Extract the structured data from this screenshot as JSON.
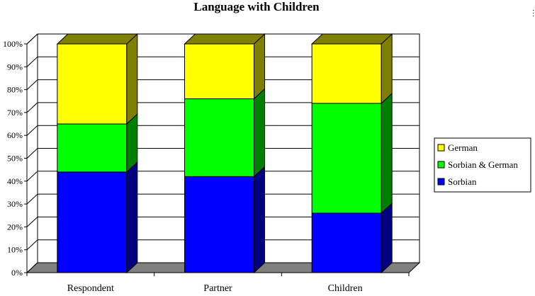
{
  "chart_data": {
    "type": "bar",
    "stacked": true,
    "percent": true,
    "three_d": true,
    "title": "Language with Children",
    "xlabel": "",
    "ylabel": "",
    "ylim": [
      0,
      100
    ],
    "y_ticks": [
      "0%",
      "10%",
      "20%",
      "30%",
      "40%",
      "50%",
      "60%",
      "70%",
      "80%",
      "90%",
      "100%"
    ],
    "categories": [
      "Respondent",
      "Partner",
      "Children"
    ],
    "series": [
      {
        "name": "Sorbian",
        "values": [
          44,
          42,
          26
        ],
        "color": "#0000FF",
        "side_color": "#000080"
      },
      {
        "name": "Sorbian & German",
        "values": [
          21,
          34,
          48
        ],
        "color": "#00FF00",
        "side_color": "#008000"
      },
      {
        "name": "German",
        "values": [
          35,
          24,
          26
        ],
        "color": "#FFFF00",
        "side_color": "#808000"
      }
    ],
    "legend": {
      "placement": "right",
      "order": [
        "German",
        "Sorbian & German",
        "Sorbian"
      ]
    },
    "grid": true,
    "floor_color": "#808080"
  }
}
